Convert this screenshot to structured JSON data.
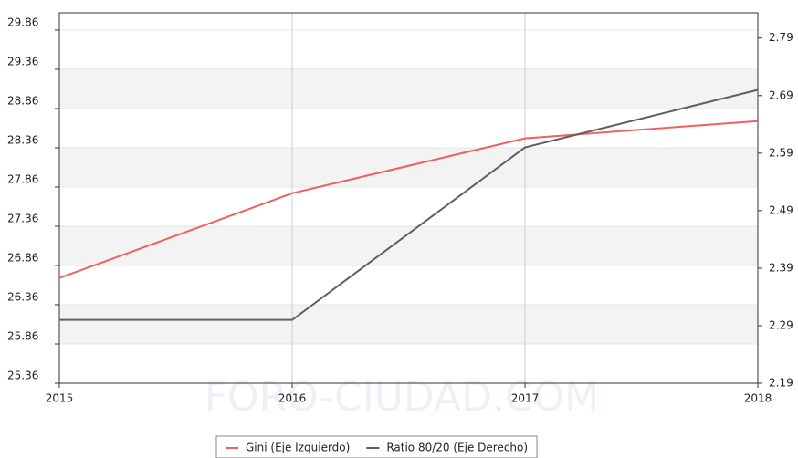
{
  "chart_data": {
    "type": "line",
    "categories": [
      "2015",
      "2016",
      "2017",
      "2018"
    ],
    "series": [
      {
        "name": "Gini (Eje Izquierdo)",
        "color": "#f06060",
        "values": [
          26.7,
          27.78,
          28.48,
          28.7
        ]
      },
      {
        "name": "Ratio 80/20 (Eje Derecho)",
        "color": "#606060",
        "axis": "y2",
        "values": [
          2.3,
          2.3,
          2.6,
          2.7
        ]
      }
    ],
    "ylim": [
      25.36,
      30.08
    ],
    "yticks": [
      25.36,
      25.86,
      26.36,
      26.86,
      27.36,
      27.86,
      28.36,
      28.86,
      29.36,
      29.86
    ],
    "y2lim": [
      2.19,
      2.834
    ],
    "y2ticks": [
      2.19,
      2.29,
      2.39,
      2.49,
      2.59,
      2.69,
      2.79
    ],
    "grid": true,
    "legend": "bottom",
    "watermark": "FORO-CIUDAD.COM"
  }
}
